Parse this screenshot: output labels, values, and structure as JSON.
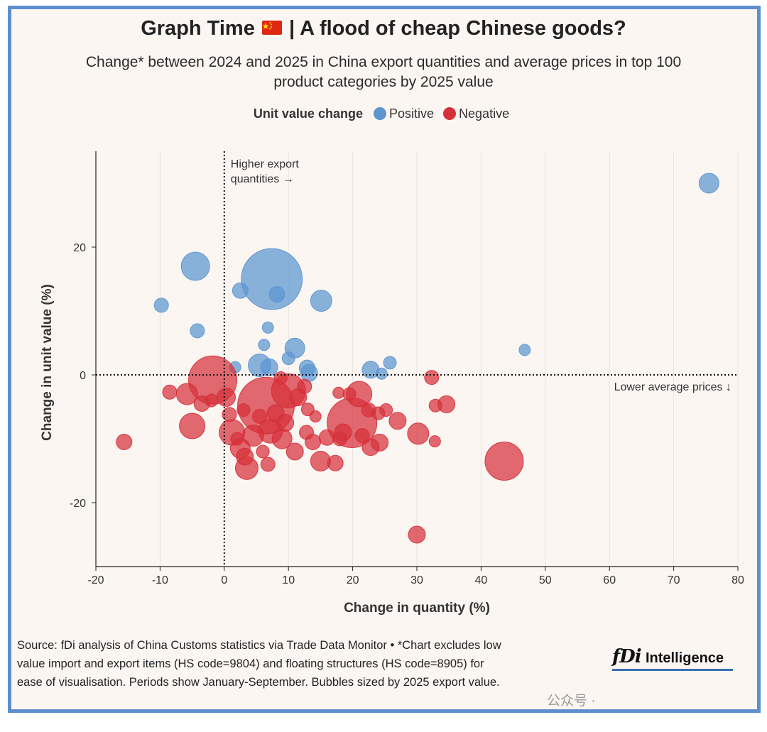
{
  "header": {
    "title_before": "Graph Time",
    "title_after": "| A flood of cheap Chinese goods?",
    "subtitle_line1": "Change* between 2024 and 2025 in China export quantities and average prices in top 100",
    "subtitle_line2": "product categories by 2025 value"
  },
  "legend": {
    "title": "Unit value change",
    "positive_label": "Positive",
    "negative_label": "Negative"
  },
  "colors": {
    "positive": "#5b95d0",
    "negative": "#d6303a",
    "frame": "#5b8fcf",
    "background": "#fbf6f2"
  },
  "chart_data": {
    "type": "scatter",
    "bubble": true,
    "xlabel": "Change in quantity (%)",
    "ylabel": "Change in unit value (%)",
    "xlim": [
      -20,
      80
    ],
    "ylim": [
      -30,
      35
    ],
    "xticks": [
      "-20",
      "-10",
      "0",
      "10",
      "20",
      "30",
      "40",
      "50",
      "60",
      "70",
      "80"
    ],
    "yticks": [
      "20",
      "0",
      "-20"
    ],
    "ytick_values": [
      20,
      0,
      -20
    ],
    "xtick_values": [
      -20,
      -10,
      0,
      10,
      20,
      30,
      40,
      50,
      60,
      70,
      80
    ],
    "annotations": {
      "higher_quantities": [
        "Higher export",
        "quantities →"
      ],
      "lower_prices": "Lower average prices ↓"
    },
    "size_note": "Bubbles sized by 2025 export value",
    "series": [
      {
        "name": "Positive",
        "points": [
          {
            "x": 75.5,
            "y": 30.0,
            "s": 14
          },
          {
            "x": 7.4,
            "y": 15.0,
            "s": 43
          },
          {
            "x": -4.5,
            "y": 17.0,
            "s": 20
          },
          {
            "x": 2.5,
            "y": 13.2,
            "s": 11
          },
          {
            "x": 8.2,
            "y": 12.6,
            "s": 11
          },
          {
            "x": 15.1,
            "y": 11.6,
            "s": 15
          },
          {
            "x": -9.8,
            "y": 10.9,
            "s": 10
          },
          {
            "x": -4.2,
            "y": 6.9,
            "s": 10
          },
          {
            "x": 6.8,
            "y": 7.4,
            "s": 8
          },
          {
            "x": 6.2,
            "y": 4.7,
            "s": 8
          },
          {
            "x": 11.0,
            "y": 4.2,
            "s": 14
          },
          {
            "x": 10.0,
            "y": 2.6,
            "s": 9
          },
          {
            "x": 5.5,
            "y": 1.5,
            "s": 16
          },
          {
            "x": 7.0,
            "y": 1.2,
            "s": 12
          },
          {
            "x": 1.7,
            "y": 1.2,
            "s": 8
          },
          {
            "x": 12.9,
            "y": 1.1,
            "s": 11
          },
          {
            "x": 13.2,
            "y": 0.3,
            "s": 12
          },
          {
            "x": 22.8,
            "y": 0.8,
            "s": 12
          },
          {
            "x": 24.5,
            "y": 0.2,
            "s": 8
          },
          {
            "x": 25.8,
            "y": 1.9,
            "s": 9
          },
          {
            "x": 46.8,
            "y": 3.9,
            "s": 8
          }
        ]
      },
      {
        "name": "Negative",
        "points": [
          {
            "x": -1.8,
            "y": -0.8,
            "s": 34
          },
          {
            "x": 6.5,
            "y": -4.8,
            "s": 40
          },
          {
            "x": 10.0,
            "y": -2.5,
            "s": 24
          },
          {
            "x": 19.9,
            "y": -7.5,
            "s": 35
          },
          {
            "x": 43.6,
            "y": -13.5,
            "s": 27
          },
          {
            "x": -15.6,
            "y": -10.5,
            "s": 11
          },
          {
            "x": 30.0,
            "y": -25.0,
            "s": 12
          },
          {
            "x": -5.0,
            "y": -8.0,
            "s": 18
          },
          {
            "x": -5.8,
            "y": -3.0,
            "s": 15
          },
          {
            "x": -8.5,
            "y": -2.7,
            "s": 10
          },
          {
            "x": -3.5,
            "y": -4.5,
            "s": 11
          },
          {
            "x": 0.3,
            "y": -3.5,
            "s": 13
          },
          {
            "x": 1.2,
            "y": -9.0,
            "s": 18
          },
          {
            "x": 2.5,
            "y": -11.5,
            "s": 14
          },
          {
            "x": 3.5,
            "y": -14.6,
            "s": 16
          },
          {
            "x": 3.2,
            "y": -12.8,
            "s": 12
          },
          {
            "x": 6.8,
            "y": -14.0,
            "s": 10
          },
          {
            "x": 4.5,
            "y": -9.5,
            "s": 15
          },
          {
            "x": 7.2,
            "y": -8.8,
            "s": 17
          },
          {
            "x": 9.0,
            "y": -10.0,
            "s": 14
          },
          {
            "x": 11.0,
            "y": -12.0,
            "s": 12
          },
          {
            "x": 12.8,
            "y": -9.0,
            "s": 10
          },
          {
            "x": 13.8,
            "y": -10.5,
            "s": 11
          },
          {
            "x": 15.0,
            "y": -13.5,
            "s": 14
          },
          {
            "x": 17.3,
            "y": -13.8,
            "s": 11
          },
          {
            "x": 18.5,
            "y": -9.0,
            "s": 12
          },
          {
            "x": 21.0,
            "y": -3.0,
            "s": 18
          },
          {
            "x": 22.5,
            "y": -5.5,
            "s": 10
          },
          {
            "x": 22.8,
            "y": -11.3,
            "s": 12
          },
          {
            "x": 24.2,
            "y": -10.6,
            "s": 12
          },
          {
            "x": 25.2,
            "y": -5.5,
            "s": 9
          },
          {
            "x": 27.0,
            "y": -7.2,
            "s": 12
          },
          {
            "x": 30.2,
            "y": -9.2,
            "s": 15
          },
          {
            "x": 32.3,
            "y": -0.4,
            "s": 10
          },
          {
            "x": 32.9,
            "y": -4.8,
            "s": 9
          },
          {
            "x": 34.6,
            "y": -4.6,
            "s": 12
          },
          {
            "x": 32.8,
            "y": -10.4,
            "s": 8
          },
          {
            "x": 17.8,
            "y": -2.8,
            "s": 8
          },
          {
            "x": 19.5,
            "y": -3.0,
            "s": 9
          },
          {
            "x": 13.0,
            "y": -5.4,
            "s": 9
          },
          {
            "x": 14.2,
            "y": -6.5,
            "s": 8
          },
          {
            "x": 16.0,
            "y": -9.8,
            "s": 11
          },
          {
            "x": 8.0,
            "y": -6.0,
            "s": 12
          },
          {
            "x": 9.5,
            "y": -7.5,
            "s": 12
          },
          {
            "x": 5.5,
            "y": -6.5,
            "s": 10
          },
          {
            "x": 3.0,
            "y": -5.5,
            "s": 9
          },
          {
            "x": 2.0,
            "y": -10.0,
            "s": 9
          },
          {
            "x": -2.0,
            "y": -4.0,
            "s": 9
          },
          {
            "x": 11.5,
            "y": -3.5,
            "s": 12
          },
          {
            "x": 12.5,
            "y": -1.8,
            "s": 10
          },
          {
            "x": 8.8,
            "y": -0.5,
            "s": 9
          },
          {
            "x": 18.0,
            "y": -10.0,
            "s": 10
          },
          {
            "x": 21.5,
            "y": -9.5,
            "s": 10
          },
          {
            "x": 24.0,
            "y": -6.0,
            "s": 9
          },
          {
            "x": 0.8,
            "y": -6.2,
            "s": 10
          },
          {
            "x": 6.0,
            "y": -12.0,
            "s": 9
          }
        ]
      }
    ]
  },
  "footer": {
    "source_line1": "Source: fDi analysis of China Customs statistics via Trade Data Monitor • *Chart excludes low",
    "source_line2": "value import and export items (HS code=9804) and floating structures (HS code=8905) for",
    "source_line3": "ease of visualisation. Periods show January-September. Bubbles sized by 2025 export value.",
    "logo_mark": "fDi",
    "logo_word": "Intelligence",
    "watermark": "公众号 ·"
  }
}
